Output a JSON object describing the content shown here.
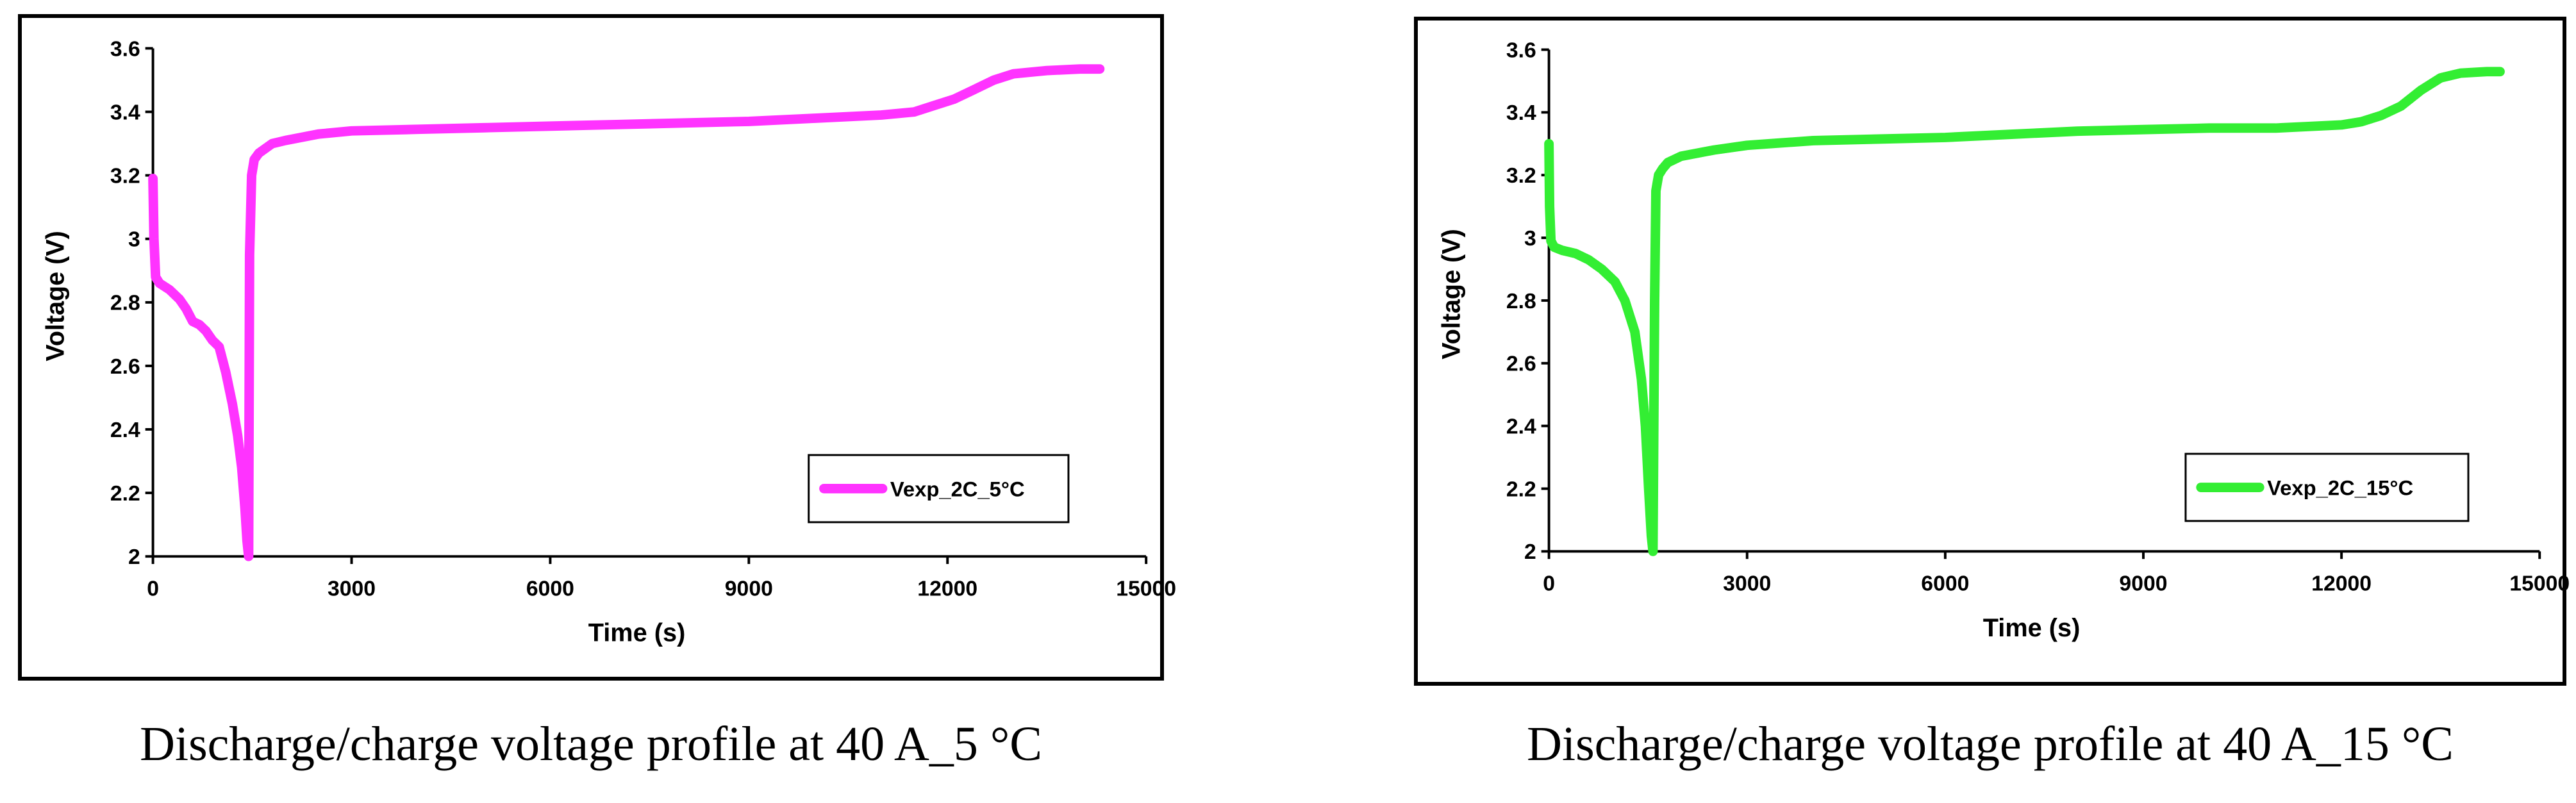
{
  "figure": {
    "captions": [
      "Discharge/charge voltage profile at 40 A_5 °C",
      "Discharge/charge voltage profile at 40 A_15 °C"
    ]
  },
  "chart_data": [
    {
      "type": "line",
      "title": "",
      "xlabel": "Time (s)",
      "ylabel": "Voltage (V)",
      "xlim": [
        0,
        15000
      ],
      "ylim": [
        2,
        3.6
      ],
      "xticks": [
        0,
        3000,
        6000,
        9000,
        12000,
        15000
      ],
      "xtick_labels": [
        "0",
        "3000",
        "6000",
        "9000",
        "12000",
        "15000"
      ],
      "yticks": [
        2,
        2.2,
        2.4,
        2.6,
        2.8,
        3,
        3.2,
        3.4,
        3.6
      ],
      "ytick_labels": [
        "2",
        "2.2",
        "2.4",
        "2.6",
        "2.8",
        "3",
        "3.2",
        "3.4",
        "3.6"
      ],
      "grid": false,
      "legend_position": "lower-right",
      "series": [
        {
          "name": "Vexp_2C_5°C",
          "color": "#ff33ff",
          "x": [
            0,
            15,
            40,
            100,
            250,
            400,
            500,
            600,
            700,
            800,
            900,
            1000,
            1100,
            1200,
            1280,
            1340,
            1390,
            1420,
            1445,
            1460,
            1490,
            1530,
            1600,
            1800,
            2000,
            2500,
            3000,
            4000,
            5000,
            6000,
            7000,
            8000,
            9000,
            10000,
            10500,
            11000,
            11500,
            11800,
            12100,
            12400,
            12700,
            13000,
            13500,
            14000,
            14300
          ],
          "y": [
            3.19,
            3.0,
            2.88,
            2.86,
            2.84,
            2.81,
            2.78,
            2.74,
            2.73,
            2.71,
            2.68,
            2.66,
            2.58,
            2.48,
            2.38,
            2.28,
            2.15,
            2.05,
            2.0,
            2.95,
            3.2,
            3.25,
            3.27,
            3.3,
            3.31,
            3.33,
            3.34,
            3.345,
            3.35,
            3.355,
            3.36,
            3.365,
            3.37,
            3.38,
            3.385,
            3.39,
            3.4,
            3.42,
            3.44,
            3.47,
            3.5,
            3.52,
            3.53,
            3.535,
            3.535
          ]
        }
      ]
    },
    {
      "type": "line",
      "title": "",
      "xlabel": "Time (s)",
      "ylabel": "Voltage (V)",
      "xlim": [
        0,
        15000
      ],
      "ylim": [
        2,
        3.6
      ],
      "xticks": [
        0,
        3000,
        6000,
        9000,
        12000,
        15000
      ],
      "xtick_labels": [
        "0",
        "3000",
        "6000",
        "9000",
        "12000",
        "15000"
      ],
      "yticks": [
        2,
        2.2,
        2.4,
        2.6,
        2.8,
        3,
        3.2,
        3.4,
        3.6
      ],
      "ytick_labels": [
        "2",
        "2.2",
        "2.4",
        "2.6",
        "2.8",
        "3",
        "3.2",
        "3.4",
        "3.6"
      ],
      "grid": false,
      "legend_position": "lower-right",
      "series": [
        {
          "name": "Vexp_2C_15°C",
          "color": "#33ee33",
          "x": [
            0,
            10,
            30,
            80,
            200,
            400,
            600,
            800,
            1000,
            1150,
            1300,
            1400,
            1460,
            1510,
            1550,
            1575,
            1600,
            1620,
            1660,
            1720,
            1800,
            2000,
            2500,
            3000,
            4000,
            5000,
            6000,
            7000,
            8000,
            9000,
            10000,
            11000,
            11500,
            12000,
            12300,
            12600,
            12900,
            13200,
            13500,
            13800,
            14200,
            14400
          ],
          "y": [
            3.3,
            3.1,
            2.99,
            2.97,
            2.96,
            2.95,
            2.93,
            2.9,
            2.86,
            2.8,
            2.7,
            2.55,
            2.4,
            2.2,
            2.05,
            2.0,
            2.8,
            3.15,
            3.2,
            3.22,
            3.24,
            3.26,
            3.28,
            3.295,
            3.31,
            3.315,
            3.32,
            3.33,
            3.34,
            3.345,
            3.35,
            3.35,
            3.355,
            3.36,
            3.37,
            3.39,
            3.42,
            3.47,
            3.51,
            3.525,
            3.53,
            3.53
          ]
        }
      ]
    }
  ]
}
